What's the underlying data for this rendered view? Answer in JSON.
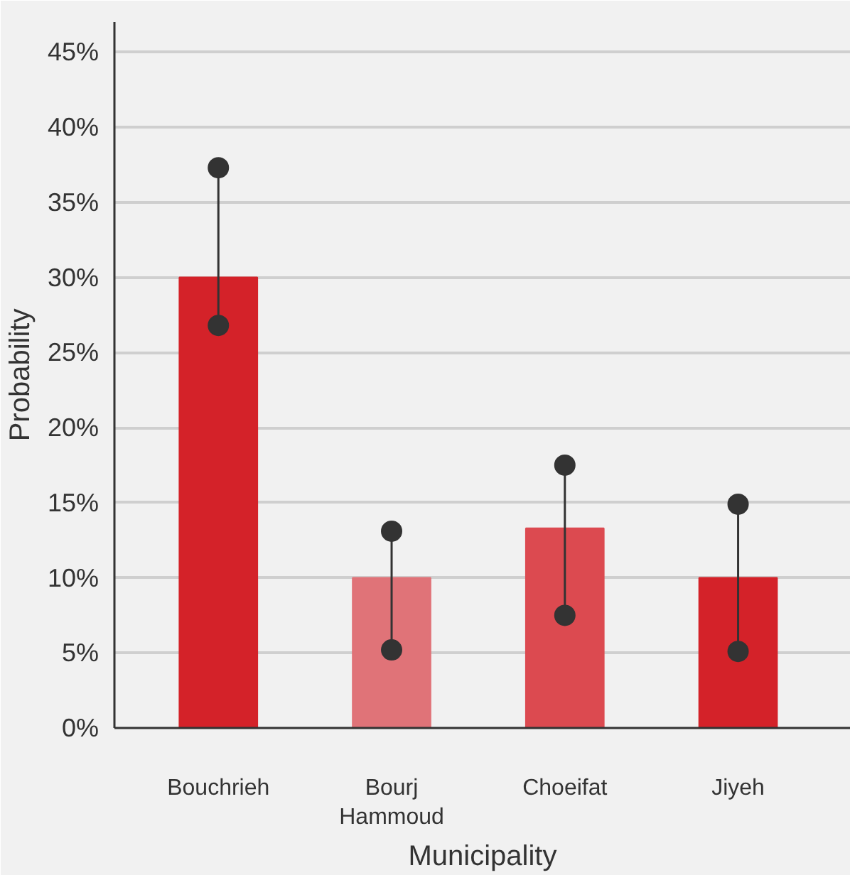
{
  "chart_data": {
    "type": "bar",
    "xlabel": "Municipality",
    "ylabel": "Probability",
    "categories": [
      "Bouchrieh",
      "Bourj Hammoud",
      "Choeifat",
      "Jiyeh"
    ],
    "series": [
      {
        "values": [
          30,
          10,
          13.3,
          10
        ],
        "colors": [
          "#d42229",
          "#e07378",
          "#dc4a50",
          "#d42229"
        ]
      },
      {
        "type": "scatter",
        "color": "#333333",
        "values": [
          26.8,
          5.2,
          7.5,
          5.1
        ]
      },
      {
        "type": "scatter",
        "color": "#333333",
        "values": [
          37.3,
          13.1,
          17.5,
          14.9
        ]
      }
    ],
    "ylim": [
      0,
      47
    ],
    "yticks": [
      {
        "value": 0,
        "label": "0%"
      },
      {
        "value": 5,
        "label": "5%"
      },
      {
        "value": 10,
        "label": "10%"
      },
      {
        "value": 15,
        "label": "15%"
      },
      {
        "value": 20,
        "label": "20%"
      },
      {
        "value": 25,
        "label": "25%"
      },
      {
        "value": 30,
        "label": "30%"
      },
      {
        "value": 35,
        "label": "35%"
      },
      {
        "value": 40,
        "label": "40%"
      },
      {
        "value": 45,
        "label": "45%"
      }
    ],
    "grid": "y",
    "marker": "circle"
  }
}
